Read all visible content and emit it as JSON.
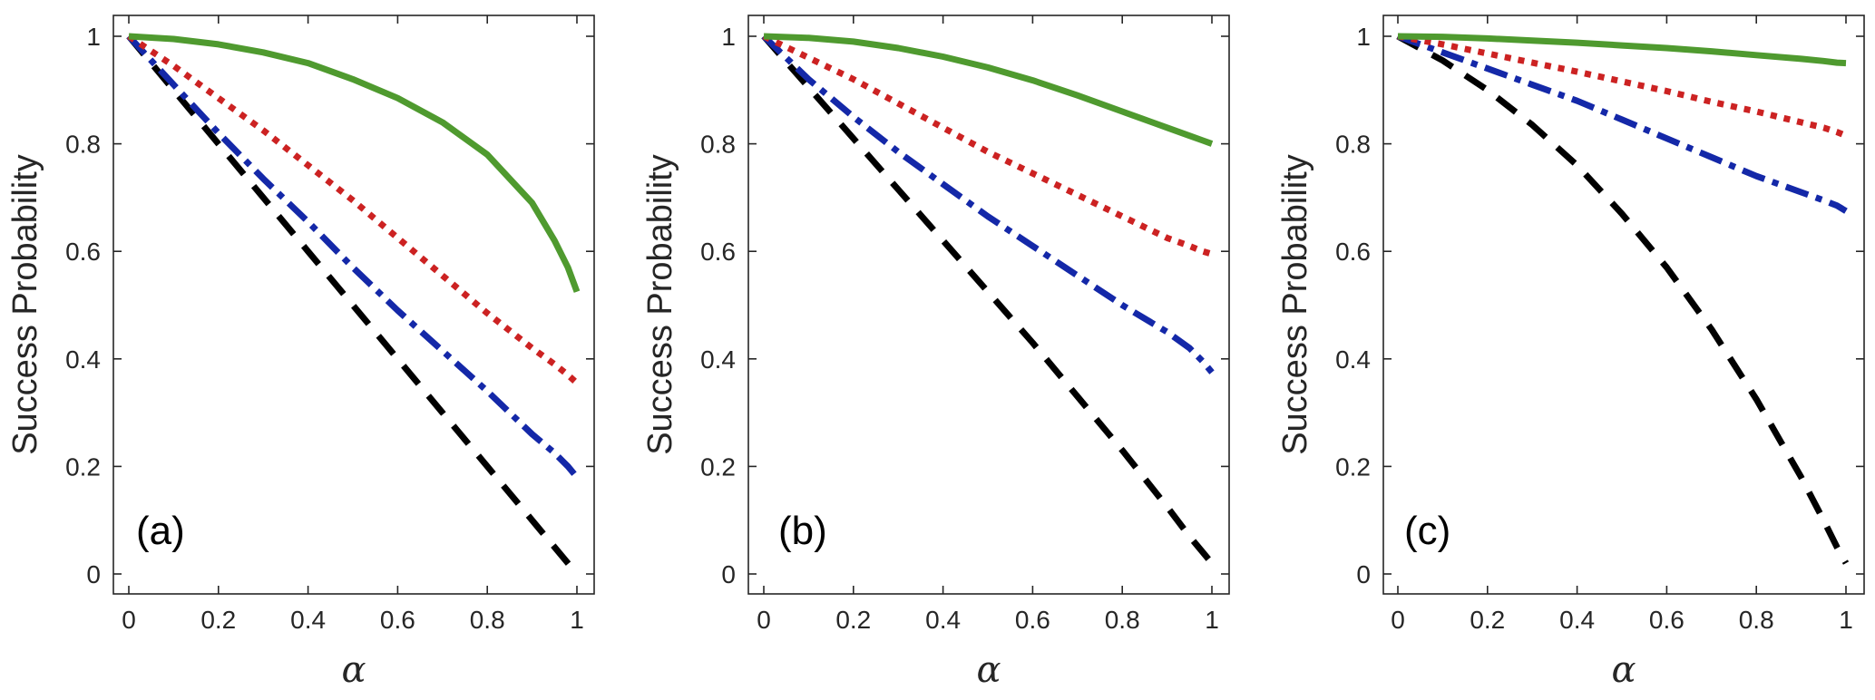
{
  "colors": {
    "solid": "#4f9a2f",
    "dotted": "#cc2222",
    "dashdot": "#1428a8",
    "dashed": "#000000",
    "axis": "#262626"
  },
  "chart_data": [
    {
      "type": "line",
      "panel_label": "(a)",
      "xlabel": "α",
      "ylabel": "Success Probability",
      "xlim": [
        0,
        1
      ],
      "ylim": [
        0,
        1
      ],
      "xticks": [
        "0",
        "0.2",
        "0.4",
        "0.6",
        "0.8",
        "1"
      ],
      "yticks": [
        "0",
        "0.2",
        "0.4",
        "0.6",
        "0.8",
        "1"
      ],
      "grid": false,
      "x": [
        0,
        0.1,
        0.2,
        0.3,
        0.4,
        0.5,
        0.6,
        0.7,
        0.8,
        0.9,
        0.95,
        0.98,
        1.0
      ],
      "series": [
        {
          "name": "solid",
          "style": "solid",
          "values": [
            1.0,
            0.995,
            0.985,
            0.97,
            0.95,
            0.92,
            0.885,
            0.84,
            0.78,
            0.69,
            0.62,
            0.57,
            0.525
          ]
        },
        {
          "name": "dotted",
          "style": "dotted",
          "values": [
            1.0,
            0.945,
            0.885,
            0.825,
            0.76,
            0.695,
            0.625,
            0.555,
            0.485,
            0.42,
            0.39,
            0.37,
            0.355
          ]
        },
        {
          "name": "dashdot",
          "style": "dashdot",
          "values": [
            1.0,
            0.91,
            0.82,
            0.735,
            0.655,
            0.57,
            0.49,
            0.415,
            0.34,
            0.26,
            0.225,
            0.2,
            0.18
          ]
        },
        {
          "name": "dashed",
          "style": "dashed",
          "values": [
            1.0,
            0.9,
            0.8,
            0.7,
            0.6,
            0.5,
            0.4,
            0.3,
            0.2,
            0.1,
            0.05,
            0.02,
            0.0
          ]
        }
      ]
    },
    {
      "type": "line",
      "panel_label": "(b)",
      "xlabel": "α",
      "ylabel": "Success Probability",
      "xlim": [
        0,
        1
      ],
      "ylim": [
        0,
        1
      ],
      "xticks": [
        "0",
        "0.2",
        "0.4",
        "0.6",
        "0.8",
        "1"
      ],
      "yticks": [
        "0",
        "0.2",
        "0.4",
        "0.6",
        "0.8",
        "1"
      ],
      "grid": false,
      "x": [
        0,
        0.1,
        0.2,
        0.3,
        0.4,
        0.5,
        0.6,
        0.7,
        0.8,
        0.9,
        0.95,
        0.98,
        1.0
      ],
      "series": [
        {
          "name": "solid",
          "style": "solid",
          "values": [
            1.0,
            0.997,
            0.99,
            0.978,
            0.962,
            0.942,
            0.918,
            0.89,
            0.86,
            0.83,
            0.815,
            0.806,
            0.8
          ]
        },
        {
          "name": "dotted",
          "style": "dotted",
          "values": [
            1.0,
            0.96,
            0.92,
            0.875,
            0.83,
            0.785,
            0.745,
            0.705,
            0.665,
            0.625,
            0.61,
            0.6,
            0.595
          ]
        },
        {
          "name": "dashdot",
          "style": "dashdot",
          "values": [
            1.0,
            0.92,
            0.85,
            0.785,
            0.725,
            0.665,
            0.61,
            0.555,
            0.5,
            0.45,
            0.42,
            0.395,
            0.375
          ]
        },
        {
          "name": "dashed",
          "style": "dashed",
          "values": [
            1.0,
            0.905,
            0.81,
            0.715,
            0.62,
            0.525,
            0.43,
            0.33,
            0.23,
            0.125,
            0.07,
            0.04,
            0.02
          ]
        }
      ]
    },
    {
      "type": "line",
      "panel_label": "(c)",
      "xlabel": "α",
      "ylabel": "Success Probability",
      "xlim": [
        0,
        1
      ],
      "ylim": [
        0,
        1
      ],
      "xticks": [
        "0",
        "0.2",
        "0.4",
        "0.6",
        "0.8",
        "1"
      ],
      "yticks": [
        "0",
        "0.2",
        "0.4",
        "0.6",
        "0.8",
        "1"
      ],
      "grid": false,
      "x": [
        0,
        0.1,
        0.2,
        0.3,
        0.4,
        0.5,
        0.6,
        0.7,
        0.8,
        0.9,
        0.95,
        0.98,
        1.0
      ],
      "series": [
        {
          "name": "solid",
          "style": "solid",
          "values": [
            1.0,
            0.999,
            0.996,
            0.992,
            0.988,
            0.983,
            0.978,
            0.972,
            0.965,
            0.958,
            0.954,
            0.951,
            0.95
          ]
        },
        {
          "name": "dotted",
          "style": "dotted",
          "values": [
            1.0,
            0.985,
            0.968,
            0.951,
            0.934,
            0.916,
            0.898,
            0.878,
            0.86,
            0.84,
            0.83,
            0.822,
            0.815
          ]
        },
        {
          "name": "dashdot",
          "style": "dashdot",
          "values": [
            1.0,
            0.97,
            0.94,
            0.91,
            0.88,
            0.845,
            0.81,
            0.775,
            0.74,
            0.71,
            0.695,
            0.685,
            0.675
          ]
        },
        {
          "name": "dashed",
          "style": "dashed",
          "values": [
            1.0,
            0.955,
            0.9,
            0.835,
            0.76,
            0.67,
            0.57,
            0.455,
            0.325,
            0.18,
            0.1,
            0.05,
            0.02
          ]
        }
      ]
    }
  ]
}
